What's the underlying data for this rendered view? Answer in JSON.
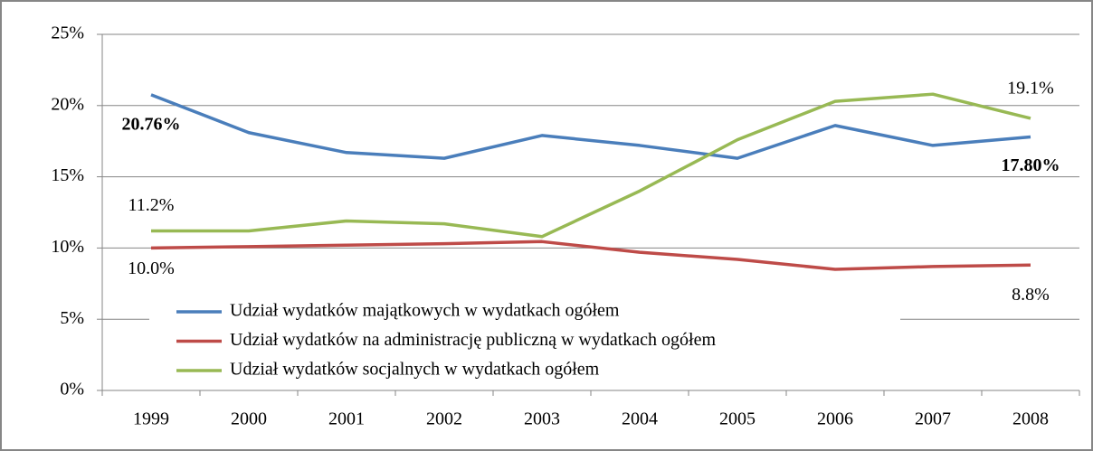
{
  "chart_data": {
    "type": "line",
    "categories": [
      "1999",
      "2000",
      "2001",
      "2002",
      "2003",
      "2004",
      "2005",
      "2006",
      "2007",
      "2008"
    ],
    "series": [
      {
        "name": "Udział wydatków majątkowych w wydatkach  ogółem",
        "color": "#4a7ebb",
        "values": [
          20.76,
          18.1,
          16.7,
          16.3,
          17.9,
          17.2,
          16.3,
          18.6,
          17.2,
          17.8
        ],
        "value_labels": [
          "20.76%",
          null,
          null,
          null,
          null,
          null,
          null,
          null,
          null,
          "17.80%"
        ]
      },
      {
        "name": "Udział wydatków na administrację publiczną w wydatkach ogółem",
        "color": "#be4b48",
        "values": [
          10.0,
          10.1,
          10.2,
          10.3,
          10.45,
          9.7,
          9.2,
          8.5,
          8.7,
          8.8
        ],
        "value_labels": [
          "10.0%",
          null,
          null,
          null,
          null,
          null,
          null,
          null,
          null,
          "8.8%"
        ]
      },
      {
        "name": "Udział wydatków socjalnych w wydatkach  ogółem",
        "color": "#98b954",
        "values": [
          11.2,
          11.2,
          11.9,
          11.7,
          10.8,
          14.0,
          17.6,
          20.3,
          20.8,
          19.1
        ],
        "value_labels": [
          "11.2%",
          null,
          null,
          null,
          null,
          null,
          null,
          null,
          null,
          "19.1%"
        ]
      }
    ],
    "ylim": [
      0,
      25
    ],
    "yticks": [
      {
        "value": 0,
        "label": "0%"
      },
      {
        "value": 5,
        "label": "5%"
      },
      {
        "value": 10,
        "label": "10%"
      },
      {
        "value": 15,
        "label": "15%"
      },
      {
        "value": 20,
        "label": "20%"
      },
      {
        "value": 25,
        "label": "25%"
      }
    ],
    "grid": true
  }
}
